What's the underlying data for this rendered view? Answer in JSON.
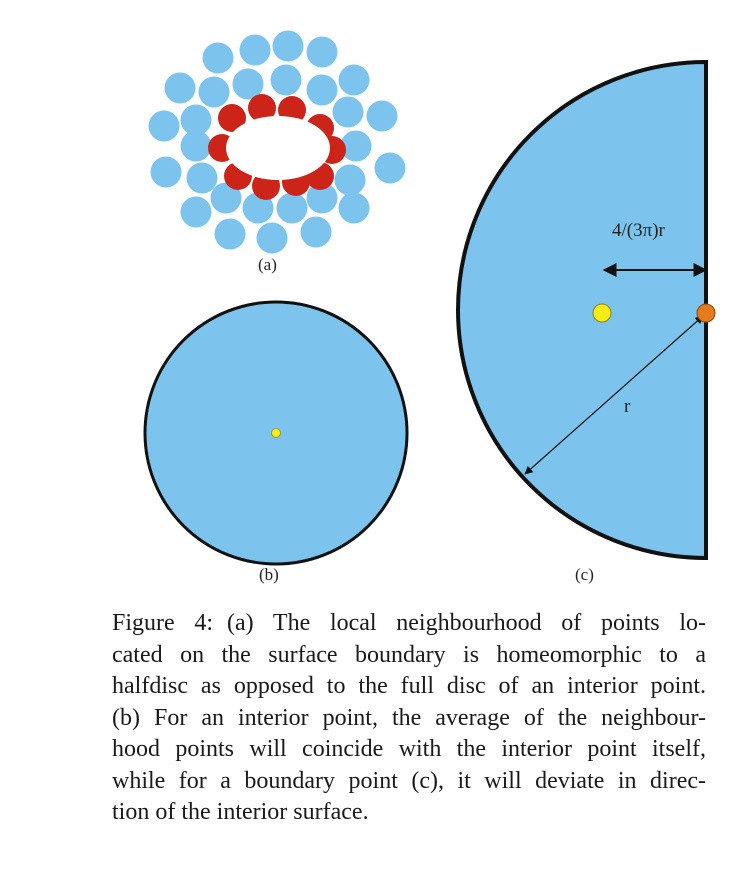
{
  "figure": {
    "labels": {
      "a": "(a)",
      "b": "(b)",
      "c": "(c)"
    },
    "distance_label": "4/(3π)r",
    "radius_label": "r",
    "colors": {
      "disc_fill": "#7cc4ee",
      "boundary_point": "#cc2418",
      "centroid": "#f5ec18",
      "boundary_marker": "#e87a1c",
      "outline": "#111111"
    }
  },
  "caption": {
    "tag": "Figure 4:",
    "lines": [
      "(a) The local neighbourhood of points lo-",
      "cated on the surface boundary is homeomorphic to a",
      "halfdisc as opposed to the full disc of an interior point.",
      "(b) For an interior point, the average of the neighbour-",
      "hood points will coincide with the interior point itself,",
      "while for a boundary point (c), it will deviate in direc-",
      "tion of the interior surface."
    ]
  }
}
